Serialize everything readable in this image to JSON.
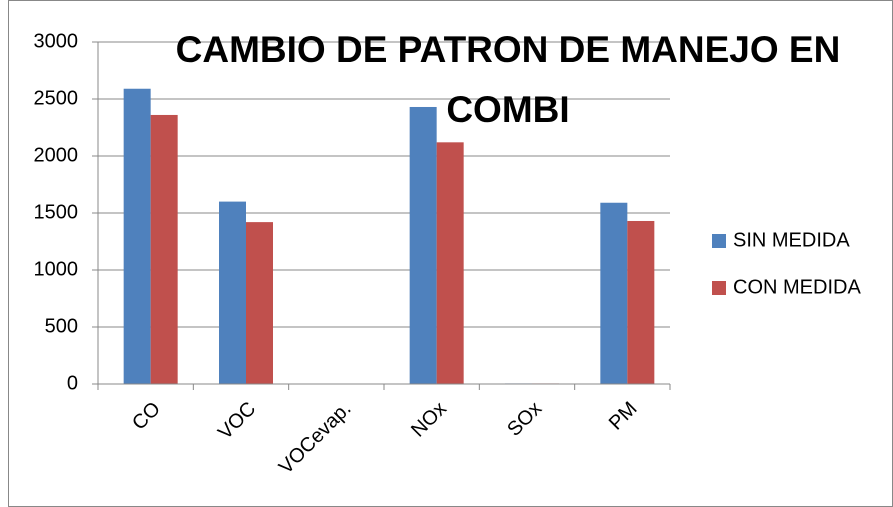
{
  "chart_data": {
    "type": "bar",
    "title": "CAMBIO DE PATRON DE MANEJO EN COMBI",
    "categories": [
      "CO",
      "VOC",
      "VOCevap.",
      "NOx",
      "SOx",
      "PM"
    ],
    "series": [
      {
        "name": "SIN MEDIDA",
        "color": "#4f81bd",
        "values": [
          2590,
          1600,
          0,
          2430,
          5,
          1590
        ]
      },
      {
        "name": "CON MEDIDA",
        "color": "#c0504d",
        "values": [
          2360,
          1420,
          0,
          2120,
          5,
          1430
        ]
      }
    ],
    "ylim": [
      0,
      3000
    ],
    "yticks": [
      0,
      500,
      1000,
      1500,
      2000,
      2500,
      3000
    ],
    "grid": true,
    "legend": "right"
  }
}
